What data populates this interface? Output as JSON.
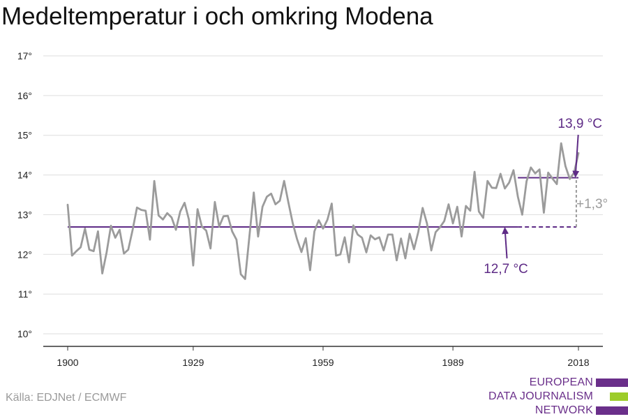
{
  "title": "Medeltemperatur i och omkring Modena",
  "source": "Källa: EDJNet / ECMWF",
  "logo": {
    "lines": [
      "EUROPEAN",
      "DATA JOURNALISM",
      "NETWORK"
    ],
    "colors": [
      "#6a2f8a",
      "#9ccc2a",
      "#6a2f8a"
    ]
  },
  "colors": {
    "series": "#9b9b9b",
    "accent": "#5e2b86",
    "diff": "#9b9b9b",
    "grid": "#dddddd",
    "axis": "#333333"
  },
  "chart_data": {
    "type": "line",
    "title": "Medeltemperatur i och omkring Modena",
    "xlabel": "",
    "ylabel": "",
    "xlim": [
      1900,
      2018
    ],
    "ylim": [
      10,
      17
    ],
    "x_ticks": [
      "1900",
      "1929",
      "1959",
      "1989",
      "2018"
    ],
    "y_ticks": [
      "10°",
      "11°",
      "12°",
      "13°",
      "14°",
      "15°",
      "16°",
      "17°"
    ],
    "grid": true,
    "series": [
      {
        "x": [
          1900,
          1901,
          1902,
          1903,
          1904,
          1905,
          1906,
          1907,
          1908,
          1909,
          1910,
          1911,
          1912,
          1913,
          1914,
          1915,
          1916,
          1917,
          1918,
          1919,
          1920,
          1921,
          1922,
          1923,
          1924,
          1925,
          1926,
          1927,
          1928,
          1929,
          1930,
          1931,
          1932,
          1933,
          1934,
          1935,
          1936,
          1937,
          1938,
          1939,
          1940,
          1941,
          1942,
          1943,
          1944,
          1945,
          1946,
          1947,
          1948,
          1949,
          1950,
          1951,
          1952,
          1953,
          1954,
          1955,
          1956,
          1957,
          1958,
          1959,
          1960,
          1961,
          1962,
          1963,
          1964,
          1965,
          1966,
          1967,
          1968,
          1969,
          1970,
          1971,
          1972,
          1973,
          1974,
          1975,
          1976,
          1977,
          1978,
          1979,
          1980,
          1981,
          1982,
          1983,
          1984,
          1985,
          1986,
          1987,
          1988,
          1989,
          1990,
          1991,
          1992,
          1993,
          1994,
          1995,
          1996,
          1997,
          1998,
          1999,
          2000,
          2001,
          2002,
          2003,
          2004,
          2005,
          2006,
          2007,
          2008,
          2009,
          2010,
          2011,
          2012,
          2013,
          2014,
          2015,
          2016,
          2017,
          2018
        ],
        "values": [
          13.25,
          11.97,
          12.08,
          12.18,
          12.65,
          12.12,
          12.08,
          12.58,
          11.52,
          12.05,
          12.72,
          12.42,
          12.62,
          12.02,
          12.12,
          12.62,
          13.18,
          13.12,
          13.1,
          12.37,
          13.85,
          12.98,
          12.88,
          13.04,
          12.93,
          12.62,
          13.08,
          13.3,
          12.88,
          11.72,
          13.14,
          12.7,
          12.6,
          12.15,
          13.32,
          12.7,
          12.96,
          12.97,
          12.58,
          12.37,
          11.5,
          11.38,
          12.47,
          13.56,
          12.45,
          13.2,
          13.45,
          13.53,
          13.26,
          13.35,
          13.85,
          13.3,
          12.78,
          12.38,
          12.06,
          12.41,
          11.6,
          12.58,
          12.86,
          12.65,
          12.87,
          13.28,
          11.97,
          12.0,
          12.43,
          11.8,
          12.73,
          12.5,
          12.42,
          12.05,
          12.48,
          12.38,
          12.43,
          12.1,
          12.5,
          12.5,
          11.85,
          12.4,
          11.9,
          12.52,
          12.13,
          12.57,
          13.17,
          12.78,
          12.1,
          12.56,
          12.68,
          12.84,
          13.26,
          12.78,
          13.2,
          12.45,
          13.22,
          13.1,
          14.08,
          13.08,
          12.92,
          13.85,
          13.68,
          13.67,
          14.03,
          13.66,
          13.81,
          14.12,
          13.45,
          13.0,
          13.84,
          14.19,
          14.04,
          14.14,
          13.05,
          14.06,
          13.91,
          13.77,
          14.8,
          14.22,
          13.9,
          14.06,
          14.55
        ]
      }
    ],
    "reference_lines": [
      {
        "label": "12,7 °C",
        "value": 12.69,
        "x_start": 1900,
        "x_end": 2004
      },
      {
        "label": "13,9 °C",
        "value": 13.93,
        "x_start": 2004,
        "x_end": 2018
      }
    ],
    "difference_label": "+1,3°"
  }
}
